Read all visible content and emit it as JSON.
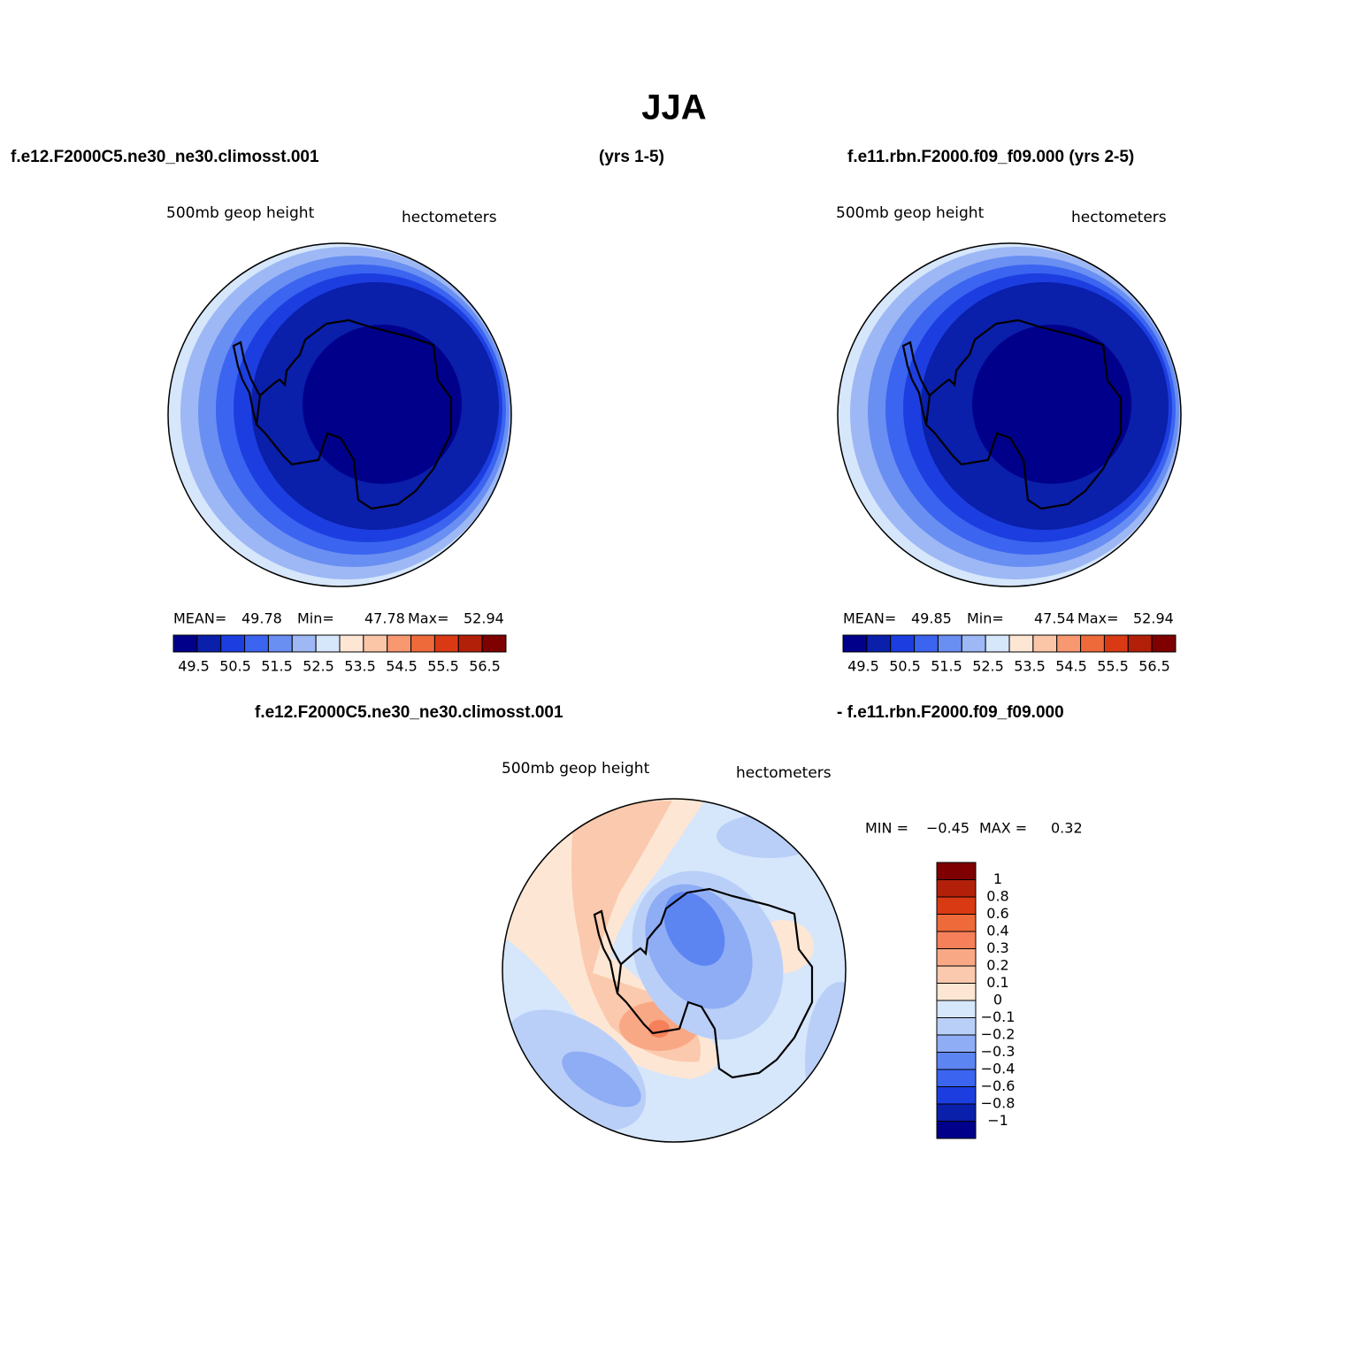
{
  "title": "JJA",
  "header": {
    "left": "f.e12.F2000C5.ne30_ne30.climosst.001",
    "middle": "(yrs 1-5)",
    "right": "f.e11.rbn.F2000.f09_f09.000 (yrs 2-5)"
  },
  "panels": [
    {
      "variable": "500mb  geop height",
      "units": "hectometers",
      "stats": [
        {
          "label": "MEAN=",
          "value": "49.78"
        },
        {
          "label": "Min=",
          "value": "47.78"
        },
        {
          "label": "Max=",
          "value": "52.94"
        }
      ],
      "colorbar": {
        "colors": [
          "#00008b",
          "#0a1faa",
          "#1c3ee0",
          "#3b64f0",
          "#6a8ff2",
          "#9db8f5",
          "#d6e6fb",
          "#fde6d4",
          "#fbc6a8",
          "#f79870",
          "#ef6a3a",
          "#d93a14",
          "#b3200a",
          "#7f0000"
        ],
        "labels": [
          "49.5",
          "50.5",
          "51.5",
          "52.5",
          "53.5",
          "54.5",
          "55.5",
          "56.5"
        ]
      }
    },
    {
      "variable": "500mb  geop height",
      "units": "hectometers",
      "stats": [
        {
          "label": "MEAN=",
          "value": "49.85"
        },
        {
          "label": "Min=",
          "value": "47.54"
        },
        {
          "label": "Max=",
          "value": "52.94"
        }
      ],
      "colorbar": {
        "colors": [
          "#00008b",
          "#0a1faa",
          "#1c3ee0",
          "#3b64f0",
          "#6a8ff2",
          "#9db8f5",
          "#d6e6fb",
          "#fde6d4",
          "#fbc6a8",
          "#f79870",
          "#ef6a3a",
          "#d93a14",
          "#b3200a",
          "#7f0000"
        ],
        "labels": [
          "49.5",
          "50.5",
          "51.5",
          "52.5",
          "53.5",
          "54.5",
          "55.5",
          "56.5"
        ]
      }
    }
  ],
  "diff": {
    "title_left": "f.e12.F2000C5.ne30_ne30.climosst.001",
    "title_right": "- f.e11.rbn.F2000.f09_f09.000",
    "variable": "500mb  geop height",
    "units": "hectometers",
    "stats": [
      {
        "label": "MIN =",
        "value": "−0.45"
      },
      {
        "label": "MAX =",
        "value": "0.32"
      }
    ],
    "colorbar": {
      "colors": [
        "#7f0000",
        "#b3200a",
        "#d93a14",
        "#ef6a3a",
        "#f5805a",
        "#f9a886",
        "#fbc9ad",
        "#fde6d4",
        "#d6e6fb",
        "#b9cff8",
        "#8fadf5",
        "#5d85f2",
        "#3b64f0",
        "#1c3ee0",
        "#0a1faa",
        "#00008b"
      ],
      "labels": [
        "1",
        "0.8",
        "0.6",
        "0.4",
        "0.3",
        "0.2",
        "0.1",
        "0",
        "−0.1",
        "−0.2",
        "−0.3",
        "−0.4",
        "−0.6",
        "−0.8",
        "−1"
      ]
    }
  }
}
